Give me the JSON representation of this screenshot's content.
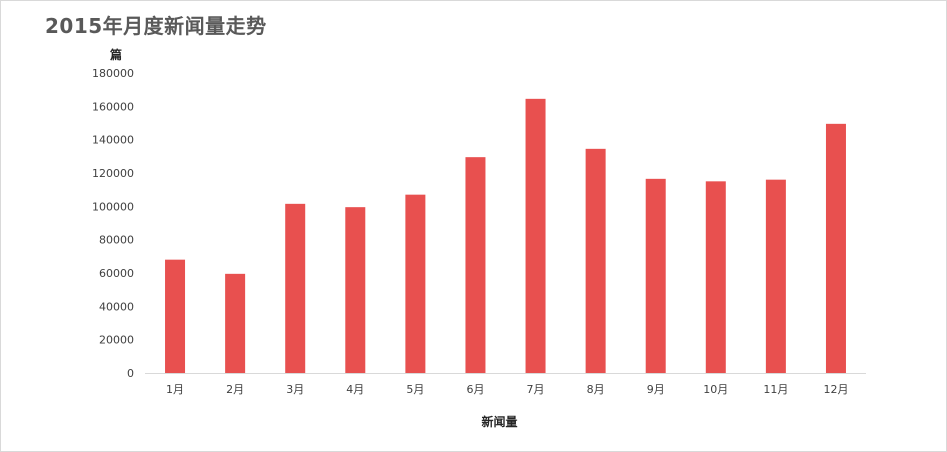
{
  "chart_data": {
    "type": "bar",
    "title": "2015年月度新闻量走势",
    "xlabel": "新闻量",
    "ylabel": "篇",
    "categories": [
      "1月",
      "2月",
      "3月",
      "4月",
      "5月",
      "6月",
      "7月",
      "8月",
      "9月",
      "10月",
      "11月",
      "12月"
    ],
    "series": [
      {
        "values": [
          68000,
          59500,
          101500,
          99500,
          107000,
          129500,
          164500,
          134500,
          116500,
          115000,
          116000,
          149500
        ]
      }
    ],
    "ylim": [
      0,
      180000
    ],
    "yticks": [
      "0",
      "20000",
      "40000",
      "60000",
      "80000",
      "100000",
      "120000",
      "140000",
      "160000",
      "180000"
    ],
    "grid": false,
    "legend": "none",
    "colors": {
      "bar": "#E8504F",
      "axis": "#d9d9d9",
      "title": "#595959"
    }
  }
}
